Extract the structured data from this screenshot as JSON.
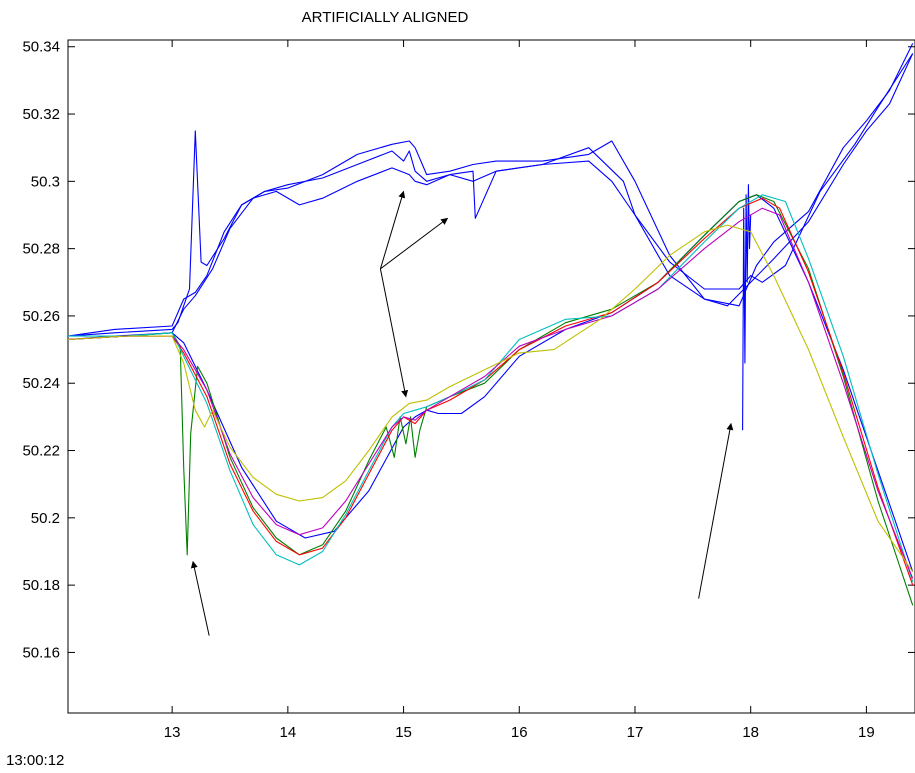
{
  "chart_data": {
    "type": "line",
    "title": "ARTIFICIALLY ALIGNED",
    "time_origin_label": "13:00:12",
    "xlim": [
      12.1,
      19.42
    ],
    "ylim": [
      50.142,
      50.342
    ],
    "x_ticks": [
      13,
      14,
      15,
      16,
      17,
      18,
      19
    ],
    "x_tick_labels": [
      "13",
      "14",
      "15",
      "16",
      "17",
      "18",
      "19"
    ],
    "y_ticks": [
      50.16,
      50.18,
      50.2,
      50.22,
      50.24,
      50.26,
      50.28,
      50.3,
      50.32,
      50.34
    ],
    "y_tick_labels": [
      "50.16",
      "50.18",
      "50.2",
      "50.22",
      "50.24",
      "50.26",
      "50.28",
      "50.3",
      "50.32",
      "50.34"
    ],
    "grid": false,
    "legend": "none",
    "colors": {
      "blue": "#0000ff",
      "green": "#008000",
      "red": "#ff0000",
      "cyan": "#00bfbf",
      "magenta": "#bf00bf",
      "yellow": "#bfbf00",
      "arrow": "#000000"
    },
    "series": [
      {
        "color": "blue",
        "x": [
          12.1,
          12.5,
          13.0,
          13.05,
          13.1,
          13.15,
          13.2,
          13.25,
          13.3,
          13.45,
          13.6,
          13.8,
          14.0,
          14.3,
          14.6,
          14.9,
          15.0,
          15.05,
          15.1,
          15.2,
          15.4,
          15.6,
          15.62,
          15.8,
          16.2,
          16.6,
          16.9,
          17.0,
          17.3,
          17.6,
          17.9,
          18.05,
          18.2,
          18.5,
          18.8,
          19.0,
          19.2,
          19.4
        ],
        "y": [
          50.254,
          50.255,
          50.256,
          50.258,
          50.263,
          50.268,
          50.315,
          50.276,
          50.275,
          50.283,
          50.293,
          50.297,
          50.299,
          50.301,
          50.305,
          50.309,
          50.306,
          50.309,
          50.303,
          50.3,
          50.302,
          50.303,
          50.289,
          50.303,
          50.305,
          50.31,
          50.3,
          50.29,
          50.272,
          50.265,
          50.263,
          50.275,
          50.282,
          50.291,
          50.31,
          50.318,
          50.327,
          50.341
        ]
      },
      {
        "color": "blue",
        "x": [
          12.1,
          12.5,
          13.0,
          13.1,
          13.2,
          13.3,
          13.45,
          13.6,
          13.8,
          14.0,
          14.3,
          14.6,
          14.9,
          15.05,
          15.1,
          15.2,
          15.4,
          15.6,
          15.8,
          16.2,
          16.6,
          16.8,
          17.0,
          17.3,
          17.6,
          17.8,
          18.0,
          18.2,
          18.5,
          18.8,
          19.0,
          19.2,
          19.4
        ],
        "y": [
          50.254,
          50.256,
          50.257,
          50.265,
          50.267,
          50.272,
          50.285,
          50.293,
          50.297,
          50.298,
          50.302,
          50.308,
          50.311,
          50.312,
          50.31,
          50.302,
          50.303,
          50.305,
          50.306,
          50.306,
          50.308,
          50.312,
          50.3,
          50.278,
          50.265,
          50.263,
          50.27,
          50.277,
          50.288,
          50.305,
          50.315,
          50.323,
          50.338
        ]
      },
      {
        "color": "blue",
        "x": [
          12.1,
          12.5,
          13.0,
          13.1,
          13.2,
          13.35,
          13.5,
          13.7,
          13.9,
          14.1,
          14.3,
          14.6,
          14.9,
          15.05,
          15.1,
          15.2,
          15.4,
          15.6,
          15.8,
          16.2,
          16.6,
          16.8,
          17.0,
          17.3,
          17.6,
          17.9,
          18.0,
          18.1,
          18.3,
          18.6,
          18.9,
          19.1,
          19.4
        ],
        "y": [
          50.253,
          50.254,
          50.255,
          50.262,
          50.266,
          50.274,
          50.286,
          50.295,
          50.297,
          50.293,
          50.295,
          50.3,
          50.304,
          50.302,
          50.3,
          50.299,
          50.302,
          50.3,
          50.303,
          50.305,
          50.306,
          50.3,
          50.29,
          50.276,
          50.268,
          50.268,
          50.272,
          50.27,
          50.275,
          50.297,
          50.311,
          50.322,
          50.338
        ]
      },
      {
        "color": "blue",
        "x": [
          12.1,
          12.6,
          13.0,
          13.1,
          13.3,
          13.6,
          13.9,
          14.15,
          14.4,
          14.7,
          15.0,
          15.1,
          15.2,
          15.3,
          15.5,
          15.7,
          16.0,
          16.4,
          16.8,
          17.2,
          17.6,
          17.9,
          18.05,
          18.2,
          18.5,
          18.8,
          19.1,
          19.4
        ],
        "y": [
          50.253,
          50.254,
          50.255,
          50.252,
          50.238,
          50.215,
          50.199,
          50.194,
          50.196,
          50.208,
          50.227,
          50.23,
          50.232,
          50.231,
          50.231,
          50.236,
          50.248,
          50.256,
          50.261,
          50.27,
          50.284,
          50.294,
          50.296,
          50.292,
          50.27,
          50.244,
          50.214,
          50.184
        ]
      },
      {
        "color": "blue",
        "x": [
          17.93,
          17.94,
          17.95,
          17.96,
          17.97,
          17.98,
          17.99,
          18.0
        ],
        "y": [
          50.226,
          50.292,
          50.246,
          50.296,
          50.27,
          50.299,
          50.28,
          50.29
        ]
      },
      {
        "color": "green",
        "x": [
          12.1,
          12.6,
          13.0,
          13.07,
          13.1,
          13.13,
          13.16,
          13.22,
          13.3,
          13.5,
          13.7,
          13.9,
          14.1,
          14.3,
          14.5,
          14.7,
          14.85,
          14.92,
          14.97,
          15.02,
          15.06,
          15.1,
          15.14,
          15.2,
          15.4,
          15.7,
          16.0,
          16.4,
          16.8,
          17.2,
          17.6,
          17.9,
          18.05,
          18.2,
          18.5,
          18.8,
          19.1,
          19.4
        ],
        "y": [
          50.253,
          50.254,
          50.255,
          50.251,
          50.215,
          50.189,
          50.225,
          50.245,
          50.24,
          50.218,
          50.203,
          50.194,
          50.189,
          50.192,
          50.202,
          50.217,
          50.227,
          50.218,
          50.23,
          50.222,
          50.23,
          50.218,
          50.226,
          50.233,
          50.236,
          50.24,
          50.25,
          50.258,
          50.262,
          50.27,
          50.284,
          50.294,
          50.296,
          50.294,
          50.274,
          50.242,
          50.205,
          50.174
        ]
      },
      {
        "color": "red",
        "x": [
          12.1,
          12.6,
          13.0,
          13.1,
          13.3,
          13.5,
          13.7,
          13.9,
          14.1,
          14.3,
          14.5,
          14.7,
          14.9,
          15.0,
          15.1,
          15.2,
          15.4,
          15.7,
          16.0,
          16.4,
          16.8,
          17.2,
          17.6,
          17.9,
          18.1,
          18.25,
          18.5,
          18.8,
          19.1,
          19.4
        ],
        "y": [
          50.253,
          50.254,
          50.254,
          50.249,
          50.236,
          50.216,
          50.202,
          50.193,
          50.189,
          50.191,
          50.2,
          50.213,
          50.226,
          50.23,
          50.228,
          50.232,
          50.235,
          50.241,
          50.25,
          50.257,
          50.261,
          50.27,
          50.283,
          50.292,
          50.295,
          50.292,
          50.273,
          50.243,
          50.209,
          50.18
        ]
      },
      {
        "color": "cyan",
        "x": [
          12.1,
          12.6,
          13.0,
          13.1,
          13.3,
          13.5,
          13.7,
          13.9,
          14.1,
          14.3,
          14.5,
          14.7,
          14.9,
          15.0,
          15.1,
          15.2,
          15.4,
          15.7,
          16.0,
          16.4,
          16.8,
          17.2,
          17.6,
          17.9,
          18.1,
          18.3,
          18.5,
          18.8,
          19.1,
          19.4
        ],
        "y": [
          50.254,
          50.254,
          50.255,
          50.248,
          50.234,
          50.214,
          50.198,
          50.189,
          50.186,
          50.19,
          50.201,
          50.214,
          50.227,
          50.231,
          50.232,
          50.233,
          50.236,
          50.241,
          50.253,
          50.259,
          50.26,
          50.268,
          50.282,
          50.292,
          50.296,
          50.294,
          50.277,
          50.248,
          50.213,
          50.181
        ]
      },
      {
        "color": "magenta",
        "x": [
          12.1,
          12.6,
          13.0,
          13.1,
          13.3,
          13.5,
          13.7,
          13.9,
          14.1,
          14.3,
          14.5,
          14.7,
          14.9,
          15.0,
          15.1,
          15.2,
          15.4,
          15.7,
          16.0,
          16.4,
          16.8,
          17.2,
          17.6,
          17.9,
          18.1,
          18.25,
          18.5,
          18.8,
          19.1,
          19.4
        ],
        "y": [
          50.253,
          50.254,
          50.254,
          50.25,
          50.238,
          50.219,
          50.206,
          50.198,
          50.195,
          50.197,
          50.205,
          50.216,
          50.227,
          50.23,
          50.229,
          50.232,
          50.236,
          50.242,
          50.251,
          50.256,
          50.26,
          50.268,
          50.28,
          50.288,
          50.292,
          50.29,
          50.27,
          50.24,
          50.208,
          50.182
        ]
      },
      {
        "color": "yellow",
        "x": [
          12.1,
          12.6,
          13.0,
          13.1,
          13.2,
          13.28,
          13.35,
          13.5,
          13.7,
          13.9,
          14.1,
          14.3,
          14.5,
          14.7,
          14.9,
          15.05,
          15.2,
          15.4,
          15.7,
          16.0,
          16.3,
          16.7,
          17.0,
          17.3,
          17.6,
          17.8,
          18.0,
          18.2,
          18.5,
          18.8,
          19.1,
          19.4
        ],
        "y": [
          50.253,
          50.254,
          50.254,
          50.246,
          50.232,
          50.227,
          50.232,
          50.221,
          50.212,
          50.207,
          50.205,
          50.206,
          50.211,
          50.22,
          50.23,
          50.234,
          50.235,
          50.239,
          50.244,
          50.249,
          50.25,
          50.259,
          50.268,
          50.278,
          50.285,
          50.287,
          50.285,
          50.272,
          50.25,
          50.224,
          50.199,
          50.184
        ]
      }
    ],
    "arrows": [
      {
        "from": [
          13.32,
          50.165
        ],
        "to": [
          13.18,
          50.187
        ]
      },
      {
        "from": [
          14.8,
          50.274
        ],
        "to": [
          15.0,
          50.297
        ]
      },
      {
        "from": [
          14.8,
          50.274
        ],
        "to": [
          15.38,
          50.289
        ]
      },
      {
        "from": [
          14.8,
          50.274
        ],
        "to": [
          15.02,
          50.236
        ]
      },
      {
        "from": [
          17.55,
          50.176
        ],
        "to": [
          17.83,
          50.228
        ]
      }
    ]
  }
}
